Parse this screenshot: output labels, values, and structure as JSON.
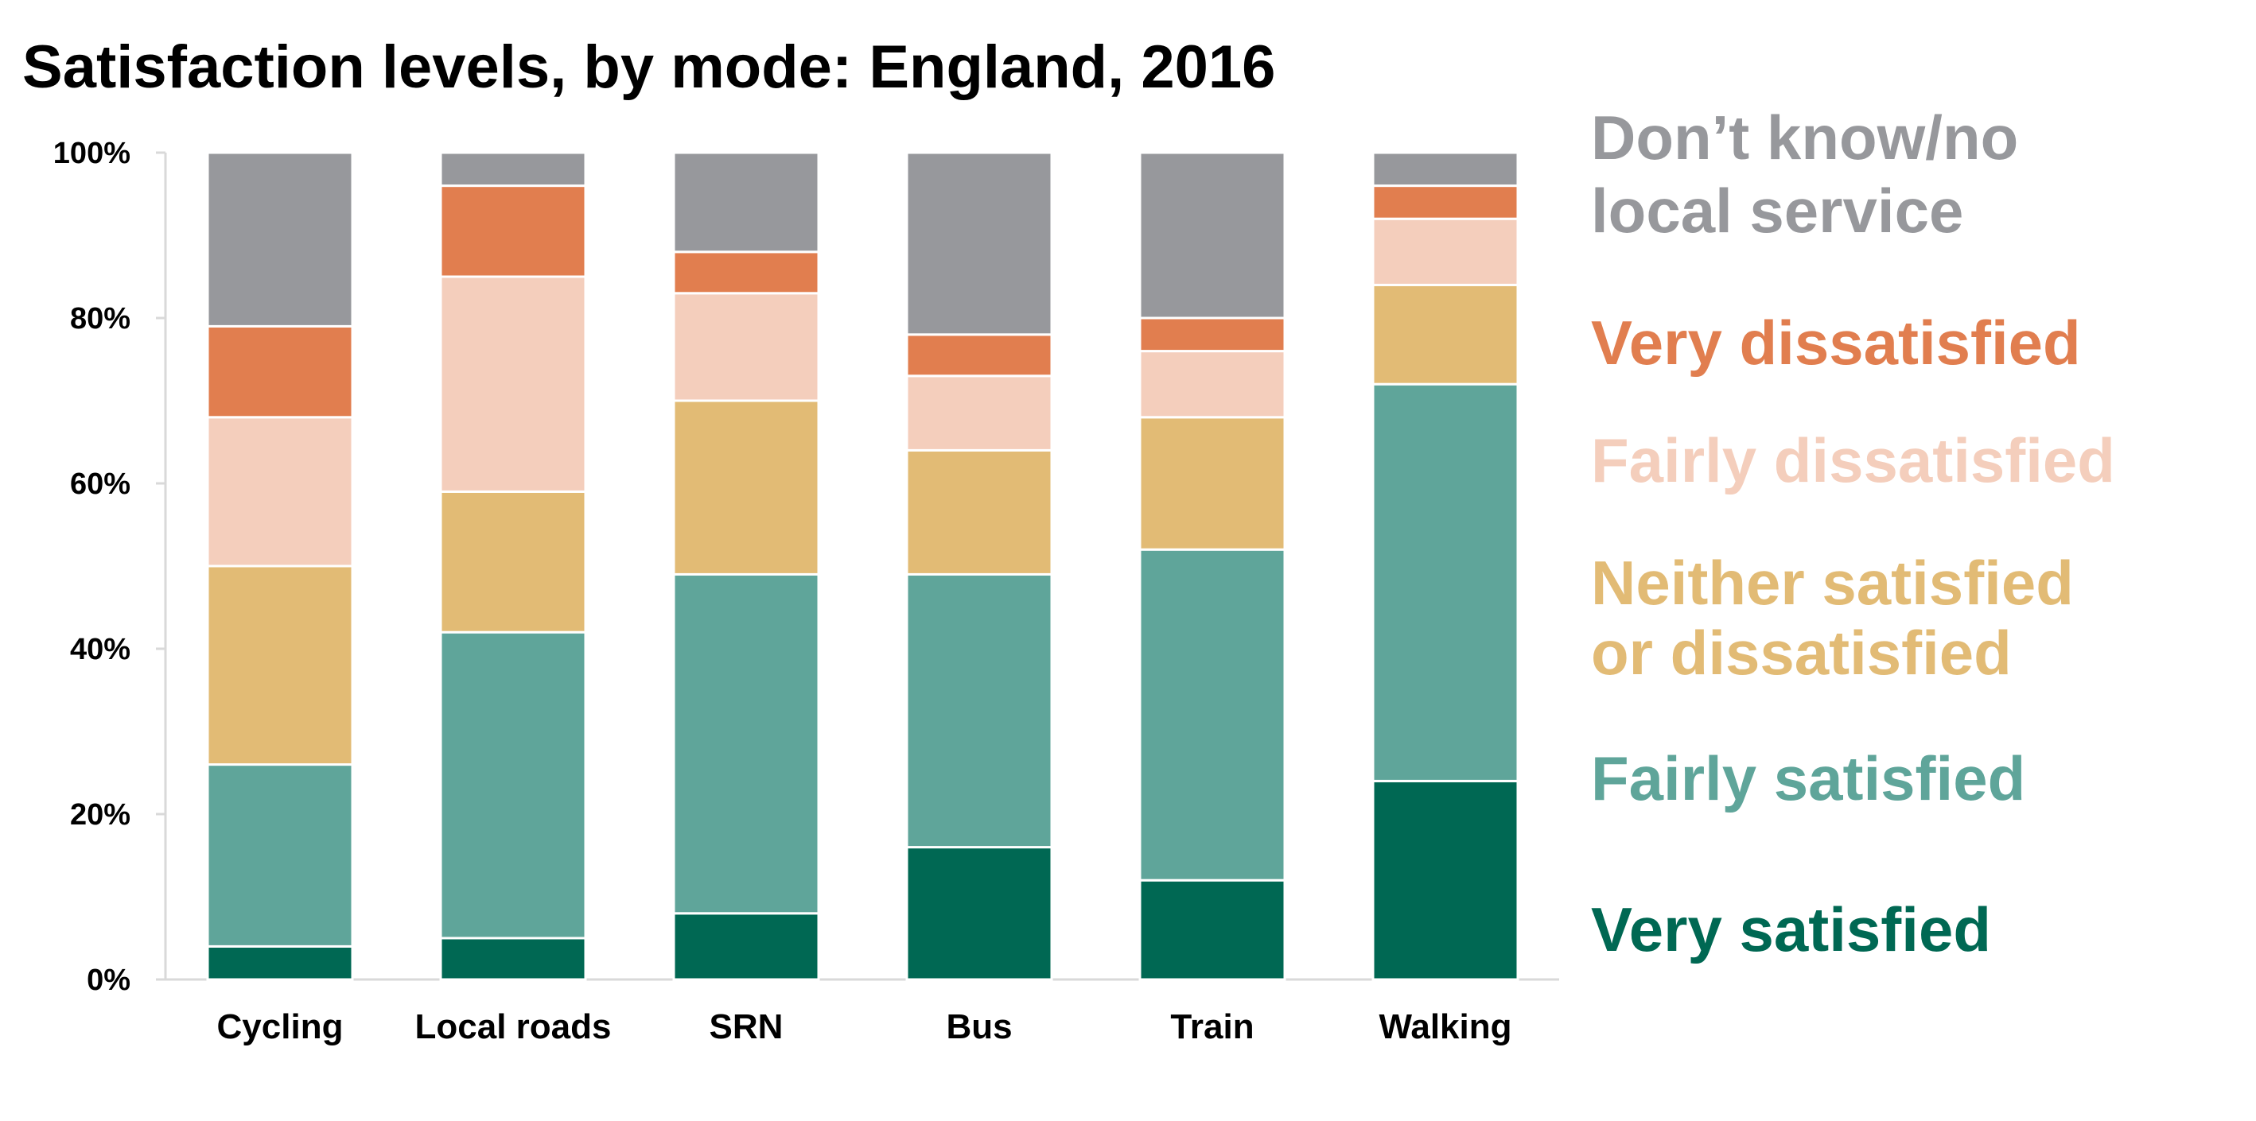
{
  "chart_data": {
    "type": "bar",
    "stacked": true,
    "title": "Satisfaction levels, by mode: England, 2016",
    "categories": [
      "Cycling",
      "Local roads",
      "SRN",
      "Bus",
      "Train",
      "Walking"
    ],
    "ylim": [
      0,
      100
    ],
    "yticks": [
      0,
      20,
      40,
      60,
      80,
      100
    ],
    "ytick_labels": [
      "0%",
      "20%",
      "40%",
      "60%",
      "80%",
      "100%"
    ],
    "grid": false,
    "legend_position": "right",
    "series": [
      {
        "name": "Very satisfied",
        "color": "#006853",
        "values": [
          4,
          5,
          8,
          16,
          12,
          24
        ]
      },
      {
        "name": "Fairly satisfied",
        "color": "#5fa59a",
        "values": [
          22,
          37,
          41,
          33,
          40,
          48
        ]
      },
      {
        "name": "Neither satisfied or dissatisfied",
        "label_lines": [
          "Neither satisfied",
          "or dissatisfied"
        ],
        "color": "#e2bb75",
        "values": [
          24,
          17,
          21,
          15,
          16,
          12
        ]
      },
      {
        "name": "Fairly dissatisfied",
        "color": "#f4cebc",
        "values": [
          18,
          26,
          13,
          9,
          8,
          8
        ]
      },
      {
        "name": "Very dissatisfied",
        "color": "#e17e4f",
        "values": [
          11,
          11,
          5,
          5,
          4,
          4
        ]
      },
      {
        "name": "Don’t know/no local service",
        "label_lines": [
          "Don’t know/no",
          "local service"
        ],
        "color": "#97989c",
        "values": [
          21,
          4,
          12,
          22,
          20,
          4
        ]
      }
    ]
  }
}
